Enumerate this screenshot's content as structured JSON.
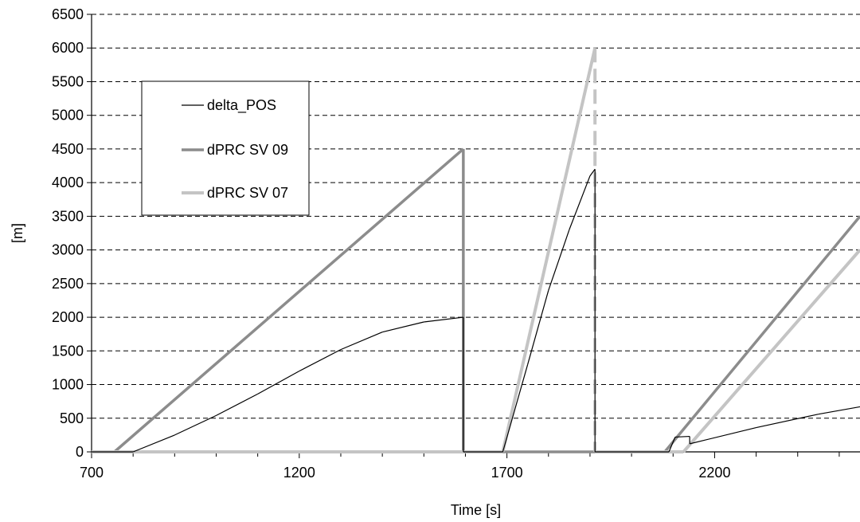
{
  "chart_data": {
    "type": "line",
    "title": "",
    "xlabel": "Time [s]",
    "ylabel": "[m]",
    "xlim": [
      700,
      2550
    ],
    "ylim": [
      0,
      6500
    ],
    "x_ticks": [
      700,
      1200,
      1700,
      2200
    ],
    "x_tick_labels": [
      "700",
      "1200",
      "1700",
      "2200"
    ],
    "y_ticks": [
      0,
      500,
      1000,
      1500,
      2000,
      2500,
      3000,
      3500,
      4000,
      4500,
      5000,
      5500,
      6000,
      6500
    ],
    "y_tick_labels": [
      "0",
      "500",
      "1000",
      "1500",
      "2000",
      "2500",
      "3000",
      "3500",
      "4000",
      "4500",
      "5000",
      "5500",
      "6000",
      "6500"
    ],
    "grid": "horizontal dashed",
    "legend_position": "upper-left",
    "series": [
      {
        "name": "delta_POS",
        "color": "#000000",
        "style": "solid-thin",
        "points": [
          [
            700,
            0
          ],
          [
            800,
            0
          ],
          [
            900,
            250
          ],
          [
            1000,
            540
          ],
          [
            1100,
            860
          ],
          [
            1200,
            1200
          ],
          [
            1300,
            1520
          ],
          [
            1400,
            1780
          ],
          [
            1500,
            1930
          ],
          [
            1595,
            2000
          ],
          [
            1595,
            0
          ],
          [
            1690,
            0
          ],
          [
            1750,
            1300
          ],
          [
            1800,
            2400
          ],
          [
            1850,
            3300
          ],
          [
            1900,
            4100
          ],
          [
            1912,
            4200
          ],
          [
            1912,
            0
          ],
          [
            2090,
            0
          ],
          [
            2105,
            220
          ],
          [
            2140,
            230
          ],
          [
            2140,
            120
          ],
          [
            2300,
            360
          ],
          [
            2450,
            560
          ],
          [
            2550,
            670
          ]
        ]
      },
      {
        "name": "dPRC SV 09",
        "color": "#8c8c8c",
        "style": "solid-thick",
        "points": [
          [
            700,
            0
          ],
          [
            755,
            0
          ],
          [
            1595,
            4500
          ],
          [
            1595,
            0
          ],
          [
            2080,
            0
          ],
          [
            2550,
            3500
          ]
        ]
      },
      {
        "name": "dPRC SV 07",
        "color": "#c4c4c4",
        "style": "solid-thick-dashed-drop",
        "points": [
          [
            700,
            0
          ],
          [
            1690,
            0
          ],
          [
            1912,
            6000
          ],
          [
            1912,
            0
          ],
          [
            2125,
            0
          ],
          [
            2550,
            3000
          ]
        ]
      }
    ]
  }
}
